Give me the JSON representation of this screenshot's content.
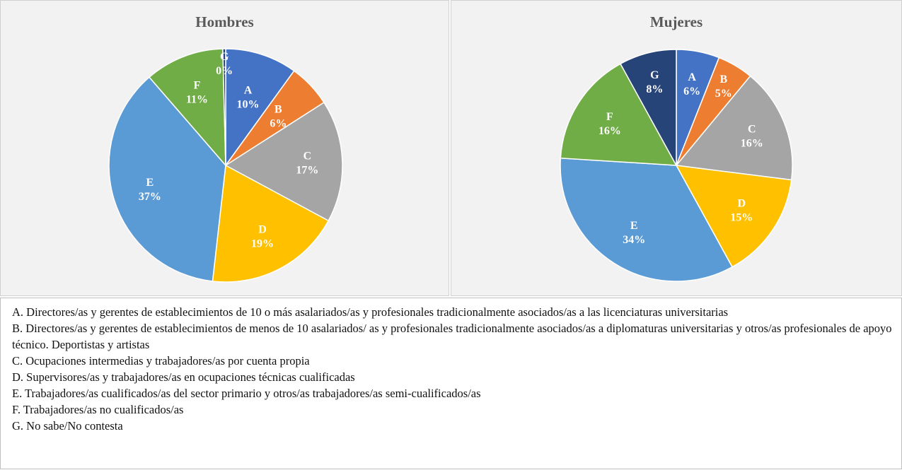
{
  "chart_data": [
    {
      "type": "pie",
      "title": "Hombres",
      "slices": [
        {
          "label": "A",
          "value": 10,
          "value_label": "10%",
          "color": "#4472c4"
        },
        {
          "label": "B",
          "value": 6,
          "value_label": "6%",
          "color": "#ed7d31"
        },
        {
          "label": "C",
          "value": 17,
          "value_label": "17%",
          "color": "#a5a5a5"
        },
        {
          "label": "D",
          "value": 19,
          "value_label": "19%",
          "color": "#ffc000"
        },
        {
          "label": "E",
          "value": 37,
          "value_label": "37%",
          "color": "#5b9bd5"
        },
        {
          "label": "F",
          "value": 11,
          "value_label": "11%",
          "color": "#70ad47"
        },
        {
          "label": "G",
          "value": 0.4,
          "value_label": "0%",
          "color": "#264478"
        }
      ]
    },
    {
      "type": "pie",
      "title": "Mujeres",
      "slices": [
        {
          "label": "A",
          "value": 6,
          "value_label": "6%",
          "color": "#4472c4"
        },
        {
          "label": "B",
          "value": 5,
          "value_label": "5%",
          "color": "#ed7d31"
        },
        {
          "label": "C",
          "value": 16,
          "value_label": "16%",
          "color": "#a5a5a5"
        },
        {
          "label": "D",
          "value": 15,
          "value_label": "15%",
          "color": "#ffc000"
        },
        {
          "label": "E",
          "value": 34,
          "value_label": "34%",
          "color": "#5b9bd5"
        },
        {
          "label": "F",
          "value": 16,
          "value_label": "16%",
          "color": "#70ad47"
        },
        {
          "label": "G",
          "value": 8,
          "value_label": "8%",
          "color": "#264478"
        }
      ]
    }
  ],
  "legend": {
    "items": [
      "A. Directores/as y gerentes de establecimientos de 10 o más asalariados/as y profesionales tradicionalmente asociados/as a las licenciaturas universitarias",
      "B. Directores/as y gerentes de establecimientos de menos de 10 asalariados/ as y profesionales tradicionalmente asociados/as a diplomaturas universitarias y otros/as profesionales de apoyo técnico. Deportistas y artistas",
      "C. Ocupaciones intermedias y trabajadores/as por cuenta propia",
      "D. Supervisores/as y trabajadores/as en ocupaciones técnicas cualificadas",
      "E. Trabajadores/as cualificados/as del sector primario y otros/as trabajadores/as semi-cualificados/as",
      "F. Trabajadores/as no cualificados/as",
      "G. No sabe/No contesta"
    ]
  }
}
